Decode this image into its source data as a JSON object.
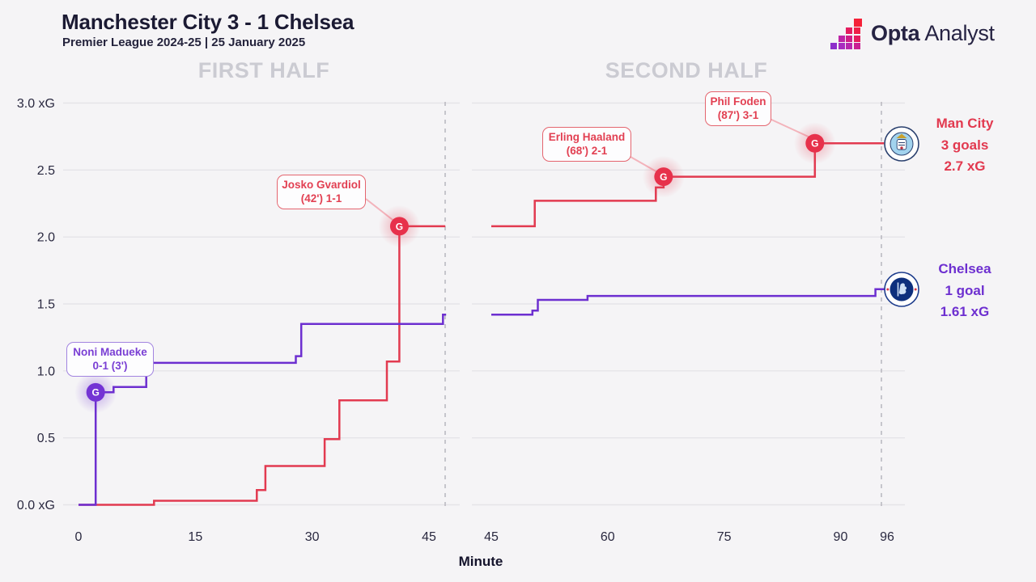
{
  "header": {
    "title": "Manchester City 3 - 1 Chelsea",
    "subtitle": "Premier League 2024-25 | 25 January 2025"
  },
  "brand": {
    "name_bold": "Opta",
    "name_regular": "Analyst"
  },
  "panels": {
    "first": "FIRST HALF",
    "second": "SECOND HALF"
  },
  "axis": {
    "y_labels": [
      "3.0 xG",
      "2.5",
      "2.0",
      "1.5",
      "1.0",
      "0.5",
      "0.0 xG"
    ],
    "y_values": [
      3,
      2.5,
      2,
      1.5,
      1,
      0.5,
      0
    ],
    "x_label": "Minute"
  },
  "teams": {
    "mancity": {
      "name": "Man City",
      "goals": "3 goals",
      "xg": "2.7 xG",
      "color": "#e23a50"
    },
    "chelsea": {
      "name": "Chelsea",
      "goals": "1 goal",
      "xg": "1.61 xG",
      "color": "#6d2fd0"
    }
  },
  "annotations": [
    {
      "id": "madueke",
      "team": "chelsea",
      "lines": [
        "Noni Madueke",
        "0-1 (3')"
      ]
    },
    {
      "id": "gvardiol",
      "team": "mancity",
      "lines": [
        "Josko Gvardiol",
        "(42') 1-1"
      ]
    },
    {
      "id": "haaland",
      "team": "mancity",
      "lines": [
        "Erling Haaland",
        "(68') 2-1"
      ]
    },
    {
      "id": "foden",
      "team": "mancity",
      "lines": [
        "Phil Foden",
        "(87') 3-1"
      ]
    }
  ],
  "chart_data": {
    "type": "line",
    "subtype": "xg-step-race",
    "title": "Manchester City 3 - 1 Chelsea — cumulative xG by minute",
    "xlabel": "Minute",
    "ylabel": "xG",
    "ylim": [
      0,
      3.0
    ],
    "y_ticks": [
      0,
      0.5,
      1.0,
      1.5,
      2.0,
      2.5,
      3.0
    ],
    "panels": [
      {
        "name": "FIRST HALF",
        "x_ticks": [
          0,
          15,
          30,
          45
        ],
        "xlim": [
          0,
          47
        ],
        "halftime_line_minute": 47
      },
      {
        "name": "SECOND HALF",
        "x_ticks": [
          45,
          60,
          75,
          90,
          96
        ],
        "xlim": [
          45,
          96
        ],
        "fulltime_line_minute": 95.3
      }
    ],
    "series": [
      {
        "name": "Man City",
        "color": "#e23a50",
        "goals": 3,
        "final_xg": 2.7,
        "steps_half1": [
          [
            0,
            0
          ],
          [
            9.7,
            0.03
          ],
          [
            22.9,
            0.11
          ],
          [
            24.0,
            0.29
          ],
          [
            31.6,
            0.49
          ],
          [
            33.5,
            0.78
          ],
          [
            39.6,
            1.07
          ],
          [
            41.2,
            2.08
          ]
        ],
        "end_half1": 47.1,
        "steps_half2": [
          [
            45,
            2.08
          ],
          [
            50.6,
            2.27
          ],
          [
            66.2,
            2.37
          ],
          [
            67.2,
            2.45
          ],
          [
            86.7,
            2.7
          ]
        ],
        "end_half2": 95.6
      },
      {
        "name": "Chelsea",
        "color": "#6d2fd0",
        "goals": 1,
        "final_xg": 1.61,
        "steps_half1": [
          [
            0,
            0
          ],
          [
            2.2,
            0.84
          ],
          [
            4.5,
            0.88
          ],
          [
            8.7,
            1.06
          ],
          [
            27.9,
            1.11
          ],
          [
            28.6,
            1.35
          ],
          [
            46.8,
            1.42
          ]
        ],
        "end_half1": 47.2,
        "steps_half2": [
          [
            45,
            1.42
          ],
          [
            50.3,
            1.45
          ],
          [
            51.0,
            1.53
          ],
          [
            57.4,
            1.56
          ],
          [
            94.5,
            1.61
          ]
        ],
        "end_half2": 95.8
      }
    ],
    "goal_events": [
      {
        "team": "Chelsea",
        "player": "Noni Madueke",
        "minute_label": "3'",
        "score": "0-1",
        "half": 1,
        "minute": 2.2,
        "xg_total": 0.84
      },
      {
        "team": "Man City",
        "player": "Josko Gvardiol",
        "minute_label": "42'",
        "score": "1-1",
        "half": 1,
        "minute": 41.2,
        "xg_total": 2.08
      },
      {
        "team": "Man City",
        "player": "Erling Haaland",
        "minute_label": "68'",
        "score": "2-1",
        "half": 2,
        "minute": 67.2,
        "xg_total": 2.45
      },
      {
        "team": "Man City",
        "player": "Phil Foden",
        "minute_label": "87'",
        "score": "3-1",
        "half": 2,
        "minute": 86.7,
        "xg_total": 2.7
      }
    ],
    "legend_position": "right",
    "grid": true
  }
}
